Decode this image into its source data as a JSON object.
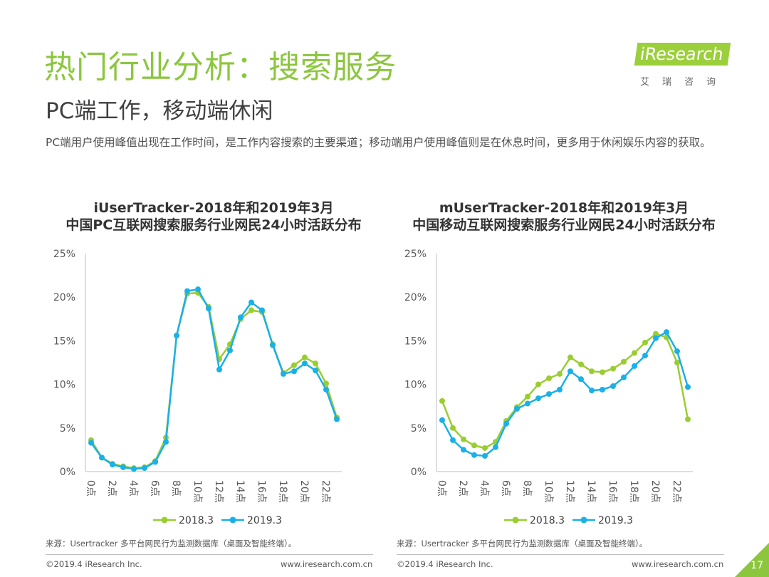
{
  "header": {
    "title": "热门行业分析：搜索服务",
    "subtitle": "PC端工作，移动端休闲",
    "description": "PC端用户使用峰值出现在工作时间，是工作内容搜索的主要渠道；移动端用户使用峰值则是在休息时间，更多用于休闲娱乐内容的获取。"
  },
  "logo": {
    "name_en": "iResearch",
    "name_cn": "艾瑞咨询"
  },
  "colors": {
    "accent": "#8cc63f",
    "series_2018": "#9acd32",
    "series_2019": "#1ab0e8"
  },
  "charts": [
    {
      "title_line1": "iUserTracker-2018年和2019年3月",
      "title_line2": "中国PC互联网搜索服务行业网民24小时活跃分布"
    },
    {
      "title_line1": "mUserTracker-2018年和2019年3月",
      "title_line2": "中国移动互联网搜索服务行业网民24小时活跃分布"
    }
  ],
  "chart_data": [
    {
      "type": "line",
      "title": "iUserTracker-2018年和2019年3月 中国PC互联网搜索服务行业网民24小时活跃分布",
      "x": [
        0,
        1,
        2,
        3,
        4,
        5,
        6,
        7,
        8,
        9,
        10,
        11,
        12,
        13,
        14,
        15,
        16,
        17,
        18,
        19,
        20,
        21,
        22,
        23
      ],
      "x_tick_labels": [
        "0点",
        "2点",
        "4点",
        "6点",
        "8点",
        "10点",
        "12点",
        "14点",
        "16点",
        "18点",
        "20点",
        "22点"
      ],
      "y_tick_labels": [
        "0%",
        "5%",
        "10%",
        "15%",
        "20%",
        "25%"
      ],
      "ylim": [
        0,
        25
      ],
      "legend": "bottom",
      "series": [
        {
          "name": "2018.3",
          "values": [
            3.6,
            1.6,
            0.9,
            0.6,
            0.4,
            0.5,
            1.2,
            3.9,
            15.6,
            20.4,
            20.5,
            18.9,
            12.9,
            14.6,
            17.5,
            18.5,
            18.3,
            14.6,
            11.3,
            12.2,
            13.1,
            12.4,
            10.1,
            6.2
          ]
        },
        {
          "name": "2019.3",
          "values": [
            3.3,
            1.6,
            0.8,
            0.5,
            0.3,
            0.4,
            1.1,
            3.4,
            15.6,
            20.7,
            20.9,
            18.7,
            11.7,
            13.9,
            17.7,
            19.4,
            18.5,
            14.5,
            11.2,
            11.5,
            12.4,
            11.6,
            9.4,
            6.0
          ]
        }
      ]
    },
    {
      "type": "line",
      "title": "mUserTracker-2018年和2019年3月 中国移动互联网搜索服务行业网民24小时活跃分布",
      "x": [
        0,
        1,
        2,
        3,
        4,
        5,
        6,
        7,
        8,
        9,
        10,
        11,
        12,
        13,
        14,
        15,
        16,
        17,
        18,
        19,
        20,
        21,
        22,
        23
      ],
      "x_tick_labels": [
        "0点",
        "2点",
        "4点",
        "6点",
        "8点",
        "10点",
        "12点",
        "14点",
        "16点",
        "18点",
        "20点",
        "22点"
      ],
      "y_tick_labels": [
        "0%",
        "5%",
        "10%",
        "15%",
        "20%",
        "25%"
      ],
      "ylim": [
        0,
        25
      ],
      "legend": "bottom",
      "series": [
        {
          "name": "2018.3",
          "values": [
            8.1,
            5.0,
            3.7,
            3.0,
            2.7,
            3.4,
            5.8,
            7.4,
            8.6,
            10.0,
            10.7,
            11.2,
            13.1,
            12.3,
            11.5,
            11.4,
            11.8,
            12.6,
            13.6,
            14.8,
            15.8,
            15.4,
            12.5,
            6.0
          ]
        },
        {
          "name": "2019.3",
          "values": [
            5.9,
            3.6,
            2.5,
            1.9,
            1.8,
            2.8,
            5.5,
            7.2,
            7.8,
            8.4,
            8.9,
            9.4,
            11.5,
            10.6,
            9.3,
            9.4,
            9.8,
            10.8,
            12.1,
            13.3,
            15.3,
            16.0,
            13.8,
            9.7
          ]
        }
      ]
    }
  ],
  "footer": {
    "source": "来源：Usertracker 多平台网民行为监测数据库（桌面及智能终端）。",
    "copyright": "©2019.4 iResearch Inc.",
    "url": "www.iresearch.com.cn",
    "page_number": "17"
  }
}
